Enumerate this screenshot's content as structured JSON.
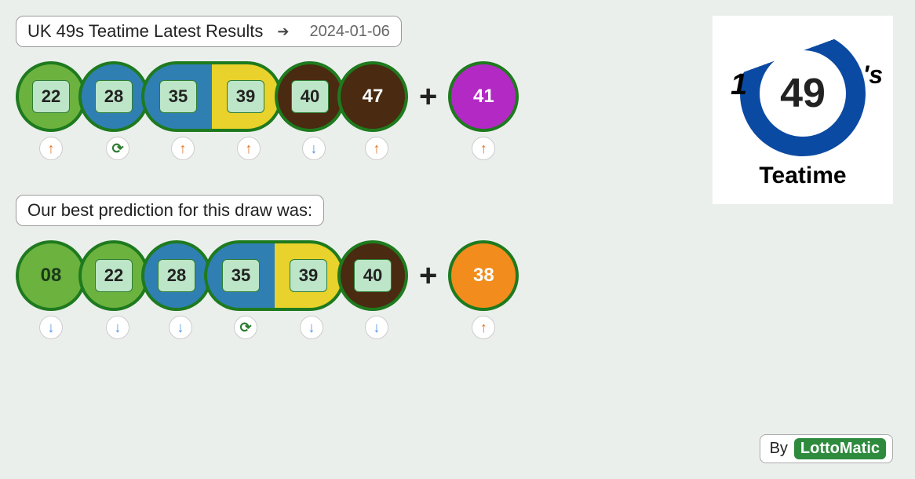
{
  "colors": {
    "green_border": "#1e7a1e",
    "green_fill": "#6cb23f",
    "blue_fill": "#2f7fb3",
    "yellow_fill": "#e8d22b",
    "brown_fill": "#4a2a10",
    "purple_fill": "#b329c4",
    "orange_fill": "#f28c1c",
    "bg": "#ebefec",
    "numbox_bg": "#bde5c7"
  },
  "header": {
    "title": "UK 49s Teatime Latest Results",
    "date": "2024-01-06"
  },
  "results": {
    "balls": [
      {
        "n": "22",
        "fill": "green",
        "style": "box",
        "trend": "up"
      },
      {
        "n": "28",
        "fill": "blue",
        "style": "box",
        "trend": "sync"
      },
      {
        "n": "35",
        "fill": "blue",
        "style": "box",
        "trend": "up",
        "linked_right": true
      },
      {
        "n": "39",
        "fill": "yellow",
        "style": "box",
        "trend": "up",
        "linked_left": true
      },
      {
        "n": "40",
        "fill": "brown",
        "style": "box",
        "trend": "down"
      },
      {
        "n": "47",
        "fill": "brown",
        "style": "plain",
        "plain_color": "#ffffff",
        "trend": "up"
      }
    ],
    "bonus": {
      "n": "41",
      "fill": "purple",
      "style": "plain",
      "plain_color": "#ffffff",
      "trend": "up"
    }
  },
  "prediction_title": "Our best prediction for this draw was:",
  "prediction": {
    "balls": [
      {
        "n": "08",
        "fill": "green",
        "style": "plain",
        "plain_color": "#1a3a1a",
        "trend": "down"
      },
      {
        "n": "22",
        "fill": "green",
        "style": "box",
        "trend": "down"
      },
      {
        "n": "28",
        "fill": "blue",
        "style": "box",
        "trend": "down"
      },
      {
        "n": "35",
        "fill": "blue",
        "style": "box",
        "trend": "sync",
        "linked_right": true
      },
      {
        "n": "39",
        "fill": "yellow",
        "style": "box",
        "trend": "down",
        "linked_left": true
      },
      {
        "n": "40",
        "fill": "brown",
        "style": "box",
        "trend": "down"
      }
    ],
    "bonus": {
      "n": "38",
      "fill": "orange",
      "style": "plain",
      "plain_color": "#ffffff",
      "trend": "up"
    }
  },
  "logo": {
    "number": "49",
    "suffix": "'s",
    "one": "1",
    "label": "Teatime"
  },
  "credit": {
    "by": "By",
    "brand": "LottoMatic"
  }
}
